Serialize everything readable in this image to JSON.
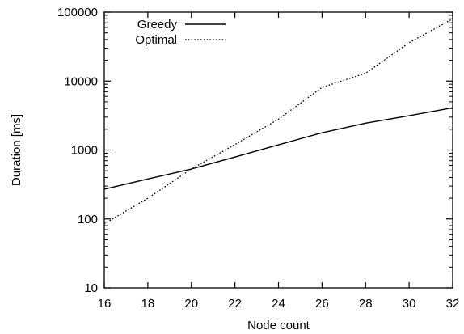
{
  "chart_data": {
    "type": "line",
    "title": "",
    "xlabel": "Node count",
    "ylabel": "Duration [ms]",
    "xlim": [
      16,
      32
    ],
    "ylim": [
      10,
      100000
    ],
    "y_scale": "log",
    "x_ticks": [
      "16",
      "18",
      "20",
      "22",
      "24",
      "26",
      "28",
      "30",
      "32"
    ],
    "y_ticks": [
      "10",
      "100",
      "1000",
      "10000",
      "100000"
    ],
    "grid": false,
    "legend_position": "top-left",
    "series": [
      {
        "name": "Greedy",
        "style": "solid",
        "color": "#000000",
        "x": [
          16,
          18,
          20,
          22,
          24,
          26,
          28,
          30,
          32
        ],
        "y": [
          270,
          380,
          530,
          790,
          1190,
          1780,
          2450,
          3150,
          4100
        ]
      },
      {
        "name": "Optimal",
        "style": "dotted",
        "color": "#000000",
        "x": [
          16,
          18,
          20,
          22,
          24,
          26,
          28,
          30,
          32
        ],
        "y": [
          85,
          200,
          530,
          1200,
          2800,
          8100,
          13000,
          36000,
          80000
        ]
      }
    ]
  }
}
